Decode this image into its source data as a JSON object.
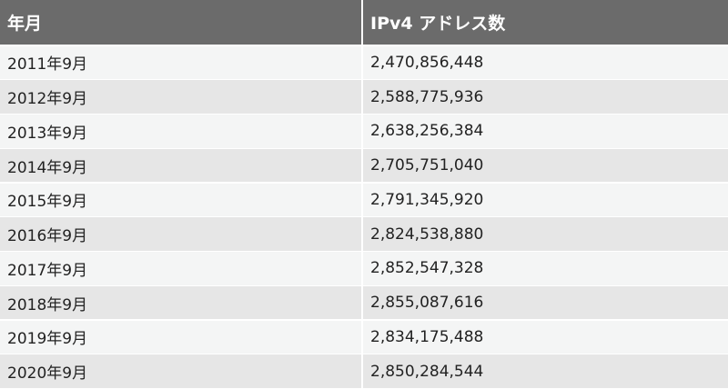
{
  "table": {
    "headers": [
      "年月",
      "IPv4 アドレス数"
    ],
    "rows": [
      [
        "2011年9月",
        "2,470,856,448"
      ],
      [
        "2012年9月",
        "2,588,775,936"
      ],
      [
        "2013年9月",
        "2,638,256,384"
      ],
      [
        "2014年9月",
        "2,705,751,040"
      ],
      [
        "2015年9月",
        "2,791,345,920"
      ],
      [
        "2016年9月",
        "2,824,538,880"
      ],
      [
        "2017年9月",
        "2,852,547,328"
      ],
      [
        "2018年9月",
        "2,855,087,616"
      ],
      [
        "2019年9月",
        "2,834,175,488"
      ],
      [
        "2020年9月",
        "2,850,284,544"
      ]
    ],
    "colors": {
      "header_bg": "#6b6b6b",
      "header_text": "#ffffff",
      "row_light": "#f4f5f5",
      "row_dark": "#e6e6e6"
    }
  }
}
